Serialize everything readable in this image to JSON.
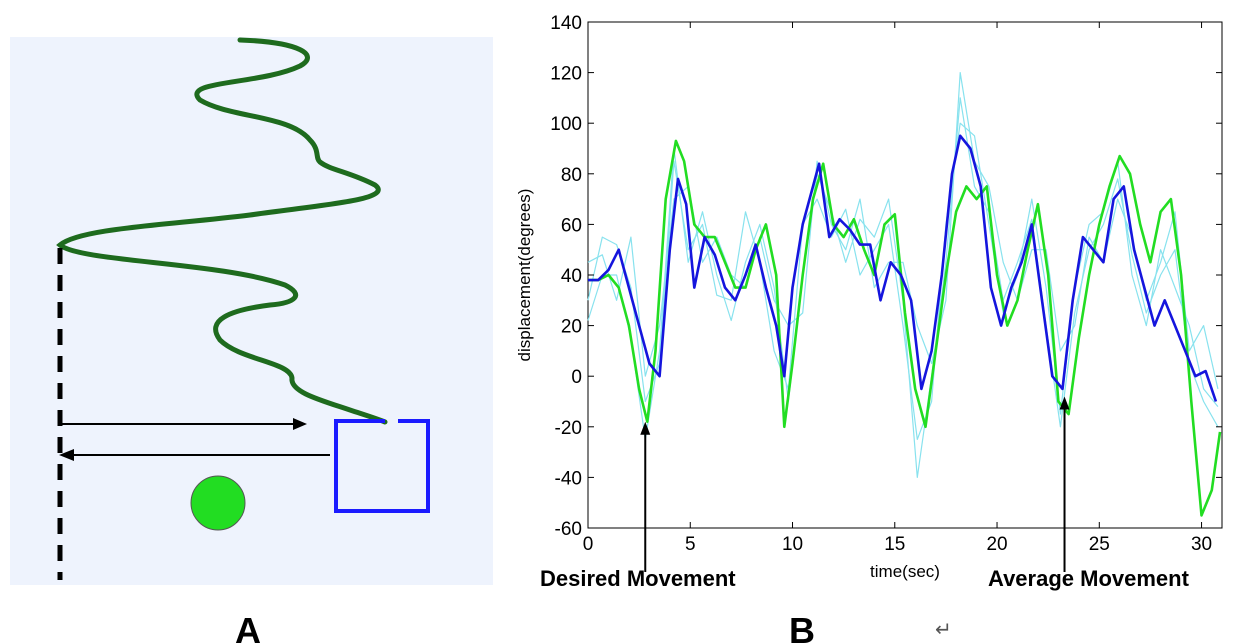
{
  "panel_a": {
    "label": "A",
    "colors": {
      "background": "#eef3fd",
      "trace": "#1e6b1e",
      "box": "#1a1aff",
      "ball": "#22dd22"
    }
  },
  "panel_b": {
    "label": "B",
    "return_symbol": "↵"
  },
  "chart_data": {
    "type": "line",
    "xlabel": "time(sec)",
    "ylabel": "displacement(degrees)",
    "xlim": [
      0,
      31
    ],
    "ylim": [
      -60,
      140
    ],
    "xticks": [
      0,
      5,
      10,
      15,
      20,
      25,
      30
    ],
    "yticks": [
      -60,
      -40,
      -20,
      0,
      20,
      40,
      60,
      80,
      100,
      120,
      140
    ],
    "grid": false,
    "annotations": [
      {
        "text": "Desired Movement",
        "x": 2.8,
        "y": -18
      },
      {
        "text": "Average Movement",
        "x": 23.3,
        "y": -8
      }
    ],
    "series": [
      {
        "role": "desired",
        "color": "#22dd22",
        "x": [
          0,
          0.5,
          1,
          1.5,
          2,
          2.5,
          2.9,
          3.3,
          3.8,
          4.3,
          4.7,
          5.2,
          5.7,
          6.2,
          6.7,
          7.2,
          7.7,
          8.2,
          8.7,
          9.2,
          9.6,
          10,
          10.5,
          11,
          11.5,
          12,
          12.5,
          13,
          13.5,
          14,
          14.5,
          15,
          15.5,
          16,
          16.5,
          17,
          17.5,
          18,
          18.5,
          19,
          19.5,
          20,
          20.5,
          21,
          21.5,
          22,
          22.5,
          23,
          23.5,
          24,
          24.5,
          25,
          25.5,
          26,
          26.5,
          27,
          27.5,
          28,
          28.5,
          29,
          29.5,
          30,
          30.5,
          30.9
        ],
        "y": [
          38,
          38,
          40,
          35,
          20,
          -5,
          -18,
          10,
          70,
          93,
          85,
          60,
          55,
          55,
          45,
          35,
          35,
          50,
          60,
          40,
          -20,
          5,
          40,
          70,
          84,
          60,
          55,
          62,
          50,
          40,
          60,
          64,
          25,
          -5,
          -20,
          10,
          40,
          65,
          75,
          70,
          75,
          40,
          20,
          30,
          50,
          68,
          40,
          -10,
          -15,
          15,
          40,
          60,
          75,
          87,
          80,
          60,
          45,
          65,
          70,
          40,
          -10,
          -55,
          -45,
          -22
        ]
      },
      {
        "role": "average",
        "color": "#1515dd",
        "x": [
          0,
          0.5,
          1,
          1.5,
          2,
          2.5,
          3,
          3.5,
          4,
          4.4,
          4.8,
          5.2,
          5.7,
          6.2,
          6.7,
          7.2,
          7.7,
          8.2,
          8.7,
          9.2,
          9.6,
          10,
          10.5,
          11,
          11.3,
          11.8,
          12.3,
          12.8,
          13.3,
          13.8,
          14.3,
          14.8,
          15.3,
          15.8,
          16.3,
          16.8,
          17.3,
          17.8,
          18.2,
          18.7,
          19.2,
          19.7,
          20.2,
          20.7,
          21.2,
          21.7,
          22.2,
          22.7,
          23.2,
          23.7,
          24.2,
          24.7,
          25.2,
          25.7,
          26.2,
          26.7,
          27.2,
          27.7,
          28.2,
          28.7,
          29.2,
          29.7,
          30.2,
          30.7
        ],
        "y": [
          38,
          38,
          42,
          50,
          35,
          20,
          5,
          0,
          50,
          78,
          68,
          35,
          55,
          48,
          35,
          30,
          40,
          52,
          35,
          20,
          0,
          35,
          60,
          75,
          84,
          55,
          62,
          58,
          52,
          52,
          30,
          45,
          40,
          30,
          -5,
          10,
          40,
          80,
          95,
          90,
          75,
          35,
          20,
          35,
          45,
          60,
          30,
          0,
          -5,
          30,
          55,
          50,
          45,
          70,
          75,
          50,
          35,
          20,
          30,
          20,
          10,
          0,
          2,
          -10
        ]
      },
      {
        "role": "trial-1",
        "color": "#88e2ee",
        "x": [
          0,
          0.7,
          1.4,
          2.1,
          2.8,
          3.5,
          4.2,
          4.9,
          5.6,
          6.3,
          7,
          7.7,
          8.4,
          9.1,
          9.8,
          10.5,
          11.2,
          11.9,
          12.6,
          13.3,
          14,
          14.7,
          15.4,
          16.1,
          16.8,
          17.5,
          18.2,
          18.9,
          19.6,
          20.3,
          21,
          21.7,
          22.4,
          23.1,
          23.8,
          24.5,
          25.2,
          25.9,
          26.6,
          27.3,
          28,
          28.7,
          29.4,
          30.1,
          30.8
        ],
        "y": [
          30,
          55,
          52,
          35,
          -10,
          5,
          85,
          50,
          60,
          32,
          30,
          65,
          45,
          10,
          -5,
          60,
          70,
          55,
          66,
          40,
          50,
          60,
          20,
          -25,
          -10,
          60,
          100,
          95,
          60,
          25,
          40,
          70,
          35,
          -15,
          35,
          60,
          65,
          85,
          40,
          20,
          50,
          35,
          20,
          -5,
          -12
        ]
      },
      {
        "role": "trial-2",
        "color": "#88e2ee",
        "x": [
          0,
          0.7,
          1.4,
          2.1,
          2.8,
          3.5,
          4.2,
          4.9,
          5.6,
          6.3,
          7,
          7.7,
          8.4,
          9.1,
          9.8,
          10.5,
          11.2,
          11.9,
          12.6,
          13.3,
          14,
          14.7,
          15.4,
          16.1,
          16.8,
          17.5,
          18.2,
          18.9,
          19.6,
          20.3,
          21,
          21.7,
          22.4,
          23.1,
          23.8,
          24.5,
          25.2,
          25.9,
          26.6,
          27.3,
          28,
          28.7,
          29.4,
          30.1,
          30.8
        ],
        "y": [
          45,
          48,
          30,
          55,
          0,
          20,
          70,
          75,
          45,
          55,
          40,
          35,
          55,
          30,
          20,
          25,
          85,
          60,
          50,
          70,
          35,
          45,
          45,
          20,
          5,
          30,
          120,
          85,
          75,
          45,
          30,
          50,
          50,
          10,
          20,
          55,
          45,
          70,
          55,
          30,
          45,
          65,
          10,
          20,
          -5
        ]
      },
      {
        "role": "trial-3",
        "color": "#88e2ee",
        "x": [
          0,
          0.7,
          1.4,
          2.1,
          2.8,
          3.5,
          4.2,
          4.9,
          5.6,
          6.3,
          7,
          7.7,
          8.4,
          9.1,
          9.8,
          10.5,
          11.2,
          11.9,
          12.6,
          13.3,
          14,
          14.7,
          15.4,
          16.1,
          16.8,
          17.5,
          18.2,
          18.9,
          19.6,
          20.3,
          21,
          21.7,
          22.4,
          23.1,
          23.8,
          24.5,
          25.2,
          25.9,
          26.6,
          27.3,
          28,
          28.7,
          29.4,
          30.1,
          30.8
        ],
        "y": [
          22,
          40,
          40,
          15,
          -25,
          10,
          90,
          45,
          65,
          40,
          22,
          45,
          60,
          35,
          -10,
          40,
          80,
          65,
          45,
          62,
          55,
          70,
          30,
          -40,
          0,
          45,
          110,
          75,
          65,
          30,
          45,
          62,
          20,
          -20,
          25,
          50,
          60,
          78,
          48,
          25,
          40,
          50,
          5,
          -10,
          -20
        ]
      }
    ]
  }
}
